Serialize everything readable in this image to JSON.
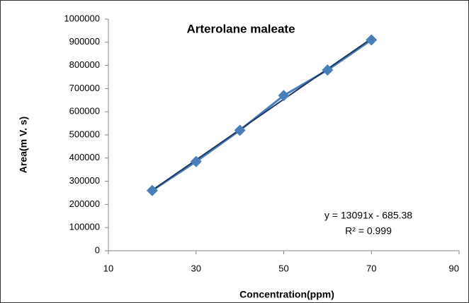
{
  "chart_data": {
    "type": "scatter-line",
    "title": "Arterolane maleate",
    "x_label": "Concentration(ppm)",
    "y_label": "Area(m V. s)",
    "x": [
      20,
      30,
      40,
      50,
      60,
      70
    ],
    "series": [
      {
        "color": "#4a7ebb",
        "values": [
          260000,
          385000,
          520000,
          670000,
          780000,
          910000
        ]
      }
    ],
    "trendline": {
      "slope": 13091,
      "intercept": -685.38,
      "color": "#1f3864",
      "equation": "y = 13091x - 685.38",
      "r2": 0.999,
      "r2_label": "R² = 0.999"
    },
    "xlim": [
      10,
      90
    ],
    "xticks": [
      10,
      30,
      50,
      70,
      90
    ],
    "ylim": [
      0,
      1000000
    ],
    "yticks": [
      0,
      100000,
      200000,
      300000,
      400000,
      500000,
      600000,
      700000,
      800000,
      900000,
      1000000
    ]
  }
}
